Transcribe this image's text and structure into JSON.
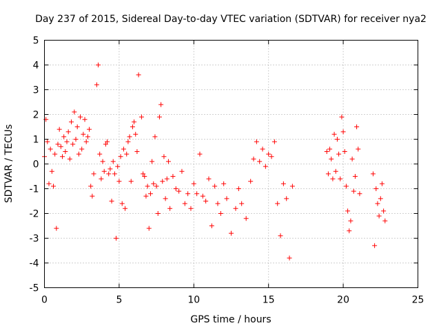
{
  "chart_data": {
    "type": "scatter",
    "title": "Day 237 of 2015, Sidereal Day-to-day VTEC variation (SDTVAR) for receiver nya2",
    "xlabel": "GPS time / hours",
    "ylabel": "SDTVAR / TECUs",
    "xlim": [
      0,
      25
    ],
    "ylim": [
      -5,
      5
    ],
    "x_ticks": [
      "0",
      "5",
      "10",
      "15",
      "20",
      "25"
    ],
    "y_ticks": [
      "-5",
      "-4",
      "-3",
      "-2",
      "-1",
      "0",
      "1",
      "2",
      "3",
      "4",
      "5"
    ],
    "grid": true,
    "marker": "plus",
    "color": "#ff0000",
    "legend": "none",
    "series": [
      {
        "name": "SDTVAR",
        "note": "representative sample of densely plotted points, read approximately from the figure",
        "x": [
          0.0,
          0.1,
          0.2,
          0.3,
          0.4,
          0.5,
          0.6,
          0.7,
          0.8,
          0.9,
          1.0,
          1.1,
          1.2,
          1.3,
          1.4,
          1.5,
          1.6,
          1.7,
          1.8,
          1.9,
          2.0,
          2.1,
          2.2,
          2.3,
          2.4,
          2.5,
          2.6,
          2.7,
          2.8,
          2.9,
          3.0,
          3.1,
          3.2,
          3.3,
          3.5,
          3.6,
          3.7,
          3.8,
          3.9,
          4.0,
          4.1,
          4.2,
          4.3,
          4.4,
          4.5,
          4.6,
          4.7,
          4.8,
          4.9,
          5.0,
          5.1,
          5.2,
          5.3,
          5.4,
          5.5,
          5.6,
          5.7,
          5.8,
          5.9,
          6.0,
          6.1,
          6.2,
          6.3,
          6.5,
          6.6,
          6.7,
          6.8,
          6.9,
          7.0,
          7.1,
          7.2,
          7.3,
          7.4,
          7.5,
          7.6,
          7.7,
          7.8,
          7.9,
          8.0,
          8.1,
          8.2,
          8.3,
          8.4,
          8.6,
          8.8,
          9.0,
          9.2,
          9.4,
          9.6,
          9.8,
          10.0,
          10.2,
          10.4,
          10.6,
          10.8,
          11.0,
          11.2,
          11.4,
          11.6,
          11.8,
          12.0,
          12.2,
          12.5,
          12.8,
          13.0,
          13.2,
          13.5,
          13.8,
          14.0,
          14.2,
          14.4,
          14.6,
          14.8,
          15.0,
          15.2,
          15.4,
          15.6,
          15.8,
          16.0,
          16.2,
          16.4,
          16.6,
          18.9,
          19.0,
          19.1,
          19.2,
          19.3,
          19.4,
          19.5,
          19.6,
          19.7,
          19.8,
          19.9,
          20.0,
          20.1,
          20.2,
          20.3,
          20.4,
          20.5,
          20.6,
          20.7,
          20.8,
          20.9,
          21.0,
          21.1,
          22.0,
          22.1,
          22.2,
          22.3,
          22.4,
          22.5,
          22.6,
          22.7,
          22.8
        ],
        "y": [
          0.3,
          1.8,
          0.9,
          -0.8,
          0.6,
          -0.3,
          -0.9,
          0.4,
          -2.6,
          0.8,
          1.4,
          0.7,
          0.3,
          1.1,
          0.5,
          0.9,
          1.3,
          0.2,
          1.7,
          0.8,
          2.1,
          1.0,
          1.5,
          0.4,
          1.9,
          0.6,
          1.2,
          1.8,
          0.9,
          1.1,
          1.4,
          -0.9,
          -1.3,
          -0.4,
          3.2,
          4.0,
          0.4,
          -0.6,
          0.1,
          -0.3,
          0.8,
          0.9,
          -0.4,
          -0.2,
          -1.5,
          0.1,
          -0.4,
          -3.0,
          -0.1,
          -0.7,
          0.3,
          -1.6,
          0.6,
          -1.8,
          0.4,
          0.9,
          1.1,
          -0.7,
          1.5,
          1.7,
          1.2,
          0.5,
          3.6,
          1.9,
          -0.4,
          -0.5,
          -1.3,
          -0.9,
          -2.6,
          -1.2,
          0.1,
          -0.8,
          1.1,
          -0.9,
          -2.0,
          1.9,
          2.4,
          -0.7,
          0.3,
          -1.4,
          -0.6,
          0.1,
          -1.8,
          -0.5,
          -1.0,
          -1.1,
          -0.3,
          -1.6,
          -1.2,
          -1.8,
          -0.8,
          -1.2,
          0.4,
          -1.3,
          -1.5,
          -0.6,
          -2.5,
          -0.9,
          -1.6,
          -2.0,
          -0.8,
          -1.4,
          -2.8,
          -1.8,
          -1.0,
          -1.6,
          -2.2,
          -0.7,
          0.2,
          0.9,
          0.1,
          0.6,
          -0.1,
          0.4,
          0.3,
          0.9,
          -1.6,
          -2.9,
          -0.8,
          -1.4,
          -3.8,
          -0.9,
          0.5,
          -0.4,
          0.6,
          0.2,
          -0.6,
          1.2,
          -0.3,
          1.0,
          0.4,
          -0.6,
          1.9,
          1.3,
          0.5,
          -0.9,
          -1.9,
          -2.7,
          -2.3,
          0.2,
          -1.1,
          -0.5,
          1.5,
          0.6,
          -1.2,
          -0.4,
          -3.3,
          -1.0,
          -1.6,
          -2.1,
          -1.4,
          -0.8,
          -1.9,
          -2.3
        ]
      }
    ]
  }
}
